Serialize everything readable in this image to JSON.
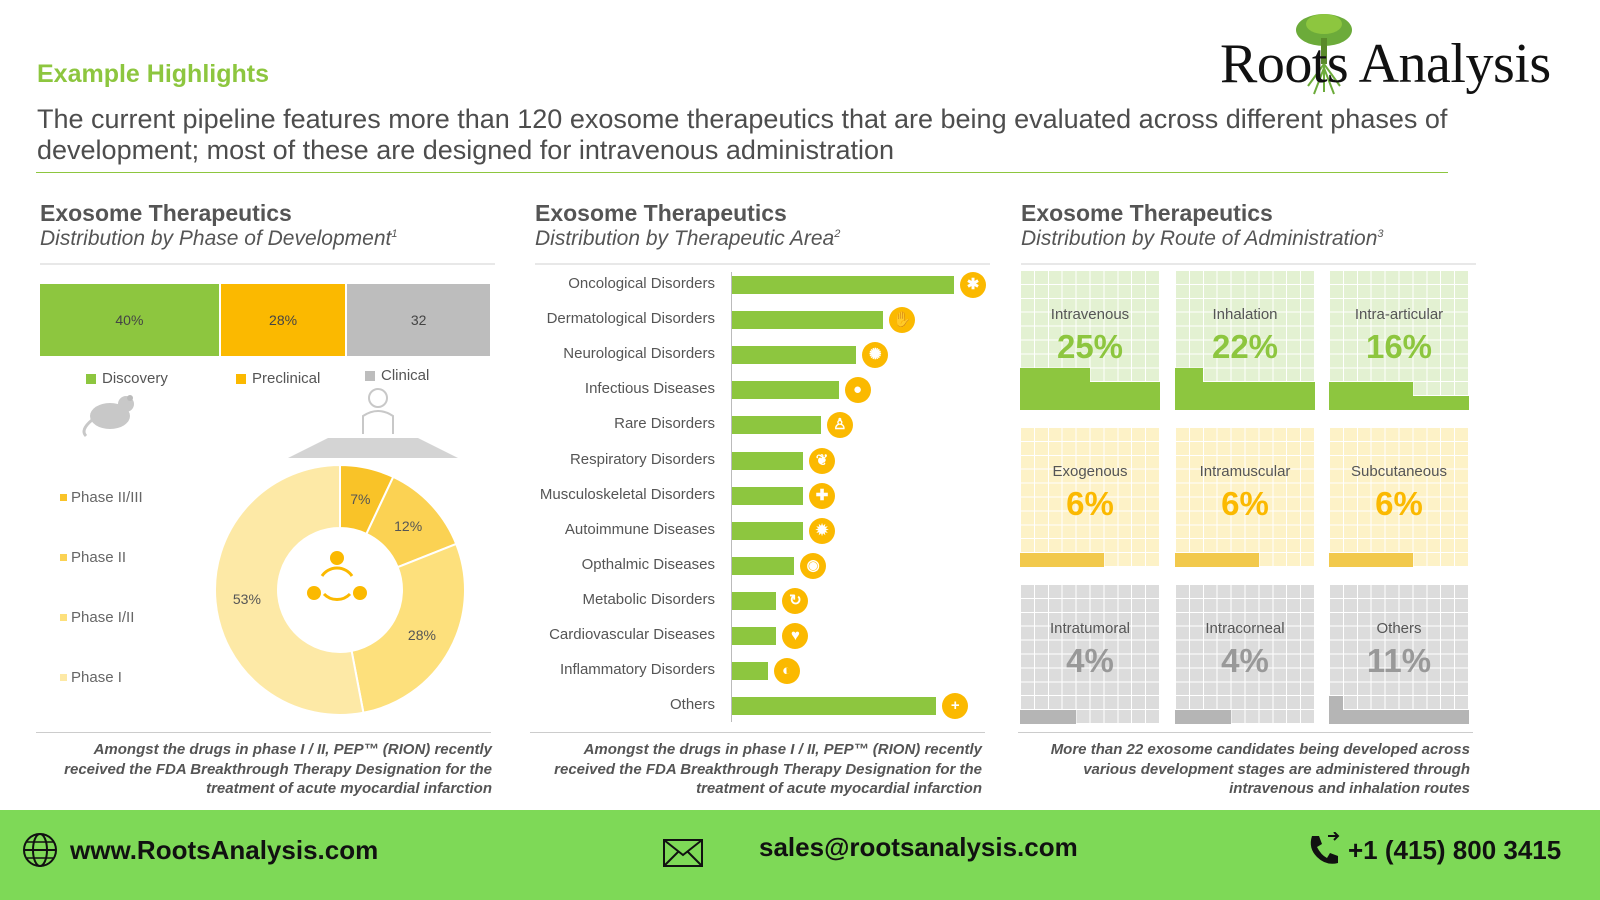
{
  "header": {
    "kicker": "Example Highlights",
    "headline": "The current pipeline features more than 120 exosome therapeutics that are being evaluated across different phases of development; most of these are designed for intravenous administration",
    "logo_text": "Roots Analysis"
  },
  "colors": {
    "green": "#8dc63f",
    "yellow": "#fbb900",
    "grey": "#bdbdbd",
    "footer": "#7ed957"
  },
  "panel1": {
    "title": "Exosome Therapeutics",
    "subtitle": "Distribution by Phase of Development",
    "sup": "1",
    "note": "Amongst the drugs in phase I / II, PEP™ (RION) recently received the FDA Breakthrough Therapy Designation for the treatment of acute myocardial infarction"
  },
  "panel2": {
    "title": "Exosome Therapeutics",
    "subtitle": "Distribution by Therapeutic Area",
    "sup": "2",
    "note": "Amongst the drugs in phase I / II, PEP™ (RION) recently received the FDA Breakthrough Therapy Designation for the treatment of acute myocardial infarction"
  },
  "panel3": {
    "title": "Exosome Therapeutics",
    "subtitle": "Distribution by Route of Administration",
    "sup": "3",
    "note": "More than 22 exosome candidates being developed across various development stages are administered through intravenous and inhalation routes"
  },
  "chart_data": [
    {
      "type": "bar",
      "orientation": "stacked-horizontal",
      "categories": [
        "Discovery",
        "Preclinical",
        "Clinical"
      ],
      "values": [
        40,
        28,
        32
      ],
      "labels": [
        "40%",
        "28%",
        "32"
      ],
      "colors": [
        "#8dc63f",
        "#fbb900",
        "#bdbdbd"
      ]
    },
    {
      "type": "pie",
      "style": "donut",
      "categories": [
        "Phase II/III",
        "Phase II",
        "Phase I/II",
        "Phase I"
      ],
      "values": [
        7,
        12,
        28,
        53
      ],
      "labels": [
        "7%",
        "12%",
        "28%",
        "53%"
      ],
      "colors": [
        "#f9c328",
        "#fbd253",
        "#fde07c",
        "#fde9a6"
      ]
    },
    {
      "type": "bar",
      "orientation": "horizontal",
      "categories": [
        "Oncological Disorders",
        "Dermatological Disorders",
        "Neurological Disorders",
        "Infectious Diseases",
        "Rare Disorders",
        "Respiratory Disorders",
        "Musculoskeletal Disorders",
        "Autoimmune Diseases",
        "Opthalmic Diseases",
        "Metabolic Disorders",
        "Cardiovascular Diseases",
        "Inflammatory Disorders",
        "Others"
      ],
      "values": [
        25,
        17,
        14,
        12,
        10,
        8,
        8,
        8,
        7,
        5,
        5,
        4,
        23
      ],
      "icons": [
        "dna-icon",
        "hand-icon",
        "brain-icon",
        "head-icon",
        "person-icon",
        "lungs-icon",
        "bone-icon",
        "virus-icon",
        "eye-icon",
        "cycle-icon",
        "heart-icon",
        "stomach-icon",
        "plus-icon"
      ],
      "icon_glyphs": [
        "✱",
        "✋",
        "✺",
        "●",
        "♙",
        "❦",
        "✚",
        "✹",
        "◉",
        "↻",
        "♥",
        "◐",
        "+"
      ]
    },
    {
      "type": "table",
      "style": "tile-grid",
      "categories": [
        "Intravenous",
        "Inhalation",
        "Intra-articular",
        "Exogenous",
        "Intramuscular",
        "Subcutaneous",
        "Intratumoral",
        "Intracorneal",
        "Others"
      ],
      "values": [
        25,
        22,
        16,
        6,
        6,
        6,
        4,
        4,
        11
      ],
      "labels": [
        "25%",
        "22%",
        "16%",
        "6%",
        "6%",
        "6%",
        "4%",
        "4%",
        "11%"
      ],
      "groups": [
        "green",
        "green",
        "green",
        "yellow",
        "yellow",
        "yellow",
        "grey",
        "grey",
        "grey"
      ]
    }
  ],
  "footer": {
    "website": "www.RootsAnalysis.com",
    "email": "sales@rootsanalysis.com",
    "phone": "+1 (415) 800 3415"
  }
}
